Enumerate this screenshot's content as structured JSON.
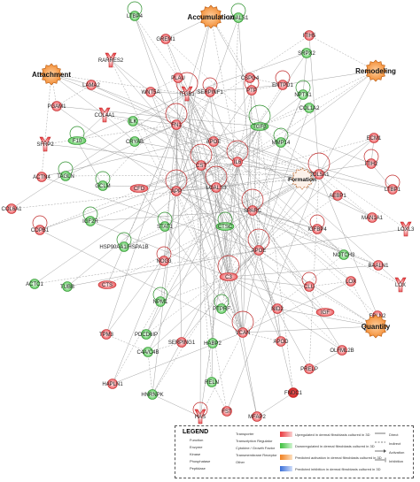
{
  "functions": [
    {
      "id": "accumulation",
      "label": "Accumulation"
    },
    {
      "id": "attachment",
      "label": "Attachment"
    },
    {
      "id": "remodeling",
      "label": "Remodeling"
    },
    {
      "id": "formation",
      "label": "Formation"
    },
    {
      "id": "quantity",
      "label": "Quantity"
    }
  ],
  "nodes": [
    {
      "id": "LTBP4",
      "label": "LTBP4",
      "reg": "down"
    },
    {
      "id": "LGALS1",
      "label": "LGALS1",
      "reg": "down"
    },
    {
      "id": "GREM1",
      "label": "GREM1",
      "reg": "up"
    },
    {
      "id": "ITIH5",
      "label": "ITIH5",
      "reg": "up"
    },
    {
      "id": "SRPX2",
      "label": "SRPX2",
      "reg": "down"
    },
    {
      "id": "RARRES2",
      "label": "RARRES2",
      "reg": "up"
    },
    {
      "id": "PLAU",
      "label": "PLAU",
      "reg": "up"
    },
    {
      "id": "CSPG4",
      "label": "CSPG4",
      "reg": "up"
    },
    {
      "id": "LAMA2",
      "label": "LAMA2",
      "reg": "up"
    },
    {
      "id": "ENTPD1",
      "label": "ENTPD1",
      "reg": "up"
    },
    {
      "id": "WNT5A",
      "label": "WNT5A",
      "reg": "up"
    },
    {
      "id": "SERPINF1",
      "label": "SERPINF1",
      "reg": "up"
    },
    {
      "id": "PGAM1",
      "label": "PGAM1",
      "reg": "up"
    },
    {
      "id": "COL4A1",
      "label": "COL4A1",
      "reg": "up"
    },
    {
      "id": "ITGB1",
      "label": "ITGB1",
      "reg": "up"
    },
    {
      "id": "PTP",
      "label": "PTP",
      "reg": "up"
    },
    {
      "id": "NPTX1",
      "label": "NPTX1",
      "reg": "down"
    },
    {
      "id": "COL1A2",
      "label": "COL1A2",
      "reg": "down"
    },
    {
      "id": "SFRP2",
      "label": "SFRP2",
      "reg": "up"
    },
    {
      "id": "F10",
      "label": "F10",
      "reg": "down"
    },
    {
      "id": "ILK",
      "label": "ILK",
      "reg": "down"
    },
    {
      "id": "FN1",
      "label": "FN1",
      "reg": "up"
    },
    {
      "id": "TGFB",
      "label": "TGFβ",
      "reg": "down"
    },
    {
      "id": "CRYAB",
      "label": "CRYAB",
      "reg": "down"
    },
    {
      "id": "APOE_top",
      "label": "APOE",
      "reg": "up"
    },
    {
      "id": "MMP14",
      "label": "MMP14",
      "reg": "down"
    },
    {
      "id": "ECM1",
      "label": "ECM1",
      "reg": "up"
    },
    {
      "id": "ACTN4",
      "label": "ACTN4",
      "reg": "up"
    },
    {
      "id": "TAGLN",
      "label": "TAGLN",
      "reg": "down"
    },
    {
      "id": "GCLM",
      "label": "GCLM",
      "reg": "down"
    },
    {
      "id": "CFD",
      "label": "CFD",
      "reg": "up"
    },
    {
      "id": "CST",
      "label": "CST",
      "reg": "up"
    },
    {
      "id": "IL6",
      "label": "IL6",
      "reg": "up"
    },
    {
      "id": "COL5A1",
      "label": "COL5A1",
      "reg": "up"
    },
    {
      "id": "ITIH2",
      "label": "ITIH2",
      "reg": "up"
    },
    {
      "id": "APP",
      "label": "APP",
      "reg": "up"
    },
    {
      "id": "LGALS3",
      "label": "LGALS3",
      "reg": "up"
    },
    {
      "id": "AEBP1",
      "label": "AEBP1",
      "reg": "up"
    },
    {
      "id": "LTBP1",
      "label": "LTBP1",
      "reg": "up"
    },
    {
      "id": "COL6A1",
      "label": "COL6A1",
      "reg": "up"
    },
    {
      "id": "COPB1",
      "label": "COPB1",
      "reg": "up"
    },
    {
      "id": "IGF2R",
      "label": "IGF2R",
      "reg": "down"
    },
    {
      "id": "SPARC",
      "label": "SPARC",
      "reg": "up"
    },
    {
      "id": "MANTA1",
      "label": "MAN1A1",
      "reg": "up"
    },
    {
      "id": "STAT1",
      "label": "STAT1",
      "reg": "down"
    },
    {
      "id": "CTSC",
      "label": "CTSC",
      "reg": "down"
    },
    {
      "id": "IGFBP4",
      "label": "IGFBP4",
      "reg": "up"
    },
    {
      "id": "LOXL3",
      "label": "LOXL3",
      "reg": "up"
    },
    {
      "id": "HSP",
      "label": "HSP90AA1/HSPA1B",
      "reg": "down"
    },
    {
      "id": "APOE",
      "label": "APOE",
      "reg": "up"
    },
    {
      "id": "NOTCH3",
      "label": "NOTCH3",
      "reg": "down"
    },
    {
      "id": "BASLIN1",
      "label": "BAALN1",
      "reg": "up"
    },
    {
      "id": "ACTC1",
      "label": "ACTC1",
      "reg": "down"
    },
    {
      "id": "NOG3",
      "label": "NOG3",
      "reg": "up"
    },
    {
      "id": "LOXL",
      "label": "LOX",
      "reg": "up"
    },
    {
      "id": "C3",
      "label": "C3",
      "reg": "up"
    },
    {
      "id": "CLU",
      "label": "CLU",
      "reg": "up"
    },
    {
      "id": "TUBB",
      "label": "TUBB",
      "reg": "down"
    },
    {
      "id": "CTS",
      "label": "CTS",
      "reg": "up"
    },
    {
      "id": "NID2",
      "label": "NID2",
      "reg": "up"
    },
    {
      "id": "LOX",
      "label": "LOX",
      "reg": "up"
    },
    {
      "id": "NPM1",
      "label": "NPM1",
      "reg": "down"
    },
    {
      "id": "PTPRF",
      "label": "PTPRF",
      "reg": "down"
    },
    {
      "id": "FBLN2",
      "label": "FBLN2",
      "reg": "up"
    },
    {
      "id": "TPM3",
      "label": "TPM3",
      "reg": "up"
    },
    {
      "id": "APOD",
      "label": "APOD",
      "reg": "up"
    },
    {
      "id": "IGF",
      "label": "IGF",
      "reg": "up"
    },
    {
      "id": "PDCD6IP",
      "label": "PDCD6IP",
      "reg": "down"
    },
    {
      "id": "SERPING1",
      "label": "SERPING1",
      "reg": "up"
    },
    {
      "id": "HABP2",
      "label": "HABP2",
      "reg": "down"
    },
    {
      "id": "VCAN",
      "label": "VCAN",
      "reg": "up"
    },
    {
      "id": "OLFML2B",
      "label": "OLFML2B",
      "reg": "up"
    },
    {
      "id": "C4",
      "label": "C4A/C4B",
      "reg": "down"
    },
    {
      "id": "PRELP",
      "label": "PRELP",
      "reg": "up"
    },
    {
      "id": "RELN",
      "label": "RELN",
      "reg": "down"
    },
    {
      "id": "HAPLN1",
      "label": "HAPLN1",
      "reg": "up"
    },
    {
      "id": "HNRNPK",
      "label": "HNRNPK",
      "reg": "down"
    },
    {
      "id": "FNDC1",
      "label": "FNDC1",
      "reg": "strong-up"
    },
    {
      "id": "FST",
      "label": "FST",
      "reg": "up"
    },
    {
      "id": "MFAP2",
      "label": "MFAP2",
      "reg": "up"
    },
    {
      "id": "HAS",
      "label": "HAS",
      "reg": "up"
    }
  ],
  "legend": {
    "title": "LEGEND",
    "shapes": [
      "Function",
      "Enzyme",
      "Kinase",
      "Phosphatase",
      "Peptidase",
      "Transporter",
      "Transcription Regulator",
      "Cytokine / Growth Factor",
      "Transmembrane Receptor",
      "Other"
    ],
    "colors": [
      {
        "label": "Upregulated in dermal fibroblasts cultured in 3D",
        "color": "#e8383d"
      },
      {
        "label": "Downregulated in dermal fibroblasts cultured in 3D",
        "color": "#3cbf3c"
      },
      {
        "label": "Predicted activation in dermal fibroblasts cultured in 3D",
        "color": "#f07f1e"
      },
      {
        "label": "Predicted inhibition in dermal fibroblasts cultured in 3D",
        "color": "#3a6fd8"
      }
    ],
    "edges": [
      "Direct",
      "Indirect",
      "Activation",
      "Inhibition"
    ]
  }
}
